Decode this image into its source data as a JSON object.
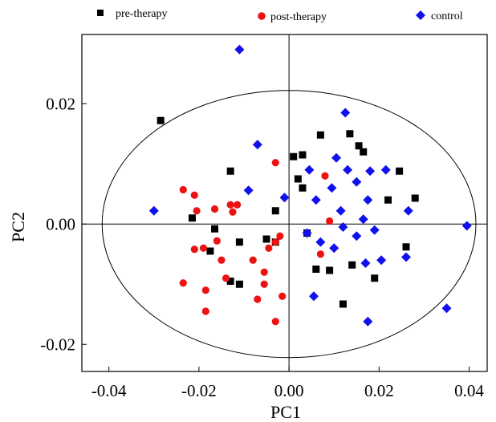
{
  "chart_data": {
    "type": "scatter",
    "title": "",
    "xlabel": "PC1",
    "ylabel": "PC2",
    "xlim": [
      -0.046,
      0.044
    ],
    "ylim": [
      -0.0245,
      0.0315
    ],
    "x_ticks": [
      -0.04,
      -0.02,
      0.0,
      0.02,
      0.04
    ],
    "x_tick_labels": [
      "-0.04",
      "-0.02",
      "0.00",
      "0.02",
      "0.04"
    ],
    "y_ticks": [
      -0.02,
      0.0,
      0.02
    ],
    "y_tick_labels": [
      "-0.02",
      "0.00",
      "0.02"
    ],
    "grid": false,
    "legend_position": "top",
    "confidence_ellipse": {
      "center": [
        0.0,
        0.0
      ],
      "radius_x": 0.0415,
      "radius_y": 0.0222
    },
    "series": [
      {
        "name": "pre-therapy",
        "marker": "square",
        "color": "#000000",
        "points": [
          [
            -0.0285,
            0.0172
          ],
          [
            -0.0215,
            0.001
          ],
          [
            -0.0175,
            -0.0045
          ],
          [
            -0.0165,
            -0.0008
          ],
          [
            -0.013,
            0.0088
          ],
          [
            -0.013,
            -0.0095
          ],
          [
            -0.011,
            -0.01
          ],
          [
            -0.011,
            -0.003
          ],
          [
            -0.005,
            -0.0025
          ],
          [
            -0.003,
            0.0022
          ],
          [
            -0.003,
            -0.003
          ],
          [
            0.001,
            0.0112
          ],
          [
            0.002,
            0.0075
          ],
          [
            0.003,
            0.006
          ],
          [
            0.003,
            0.0115
          ],
          [
            0.004,
            -0.0015
          ],
          [
            0.006,
            -0.0075
          ],
          [
            0.007,
            0.0148
          ],
          [
            0.009,
            -0.0077
          ],
          [
            0.012,
            -0.0133
          ],
          [
            0.0135,
            0.015
          ],
          [
            0.014,
            -0.0068
          ],
          [
            0.0155,
            0.013
          ],
          [
            0.0165,
            0.012
          ],
          [
            0.019,
            -0.009
          ],
          [
            0.022,
            0.004
          ],
          [
            0.0245,
            0.0088
          ],
          [
            0.026,
            -0.0038
          ],
          [
            0.028,
            0.0043
          ]
        ]
      },
      {
        "name": "post-therapy",
        "marker": "circle",
        "color": "#ee1111",
        "points": [
          [
            -0.0235,
            0.0057
          ],
          [
            -0.0235,
            -0.0098
          ],
          [
            -0.021,
            0.0048
          ],
          [
            -0.0205,
            0.0022
          ],
          [
            -0.021,
            -0.0042
          ],
          [
            -0.019,
            -0.004
          ],
          [
            -0.0185,
            -0.011
          ],
          [
            -0.0185,
            -0.0145
          ],
          [
            -0.0165,
            0.0025
          ],
          [
            -0.016,
            -0.0028
          ],
          [
            -0.015,
            -0.006
          ],
          [
            -0.014,
            -0.009
          ],
          [
            -0.013,
            0.0032
          ],
          [
            -0.0125,
            0.002
          ],
          [
            -0.0115,
            0.0032
          ],
          [
            -0.008,
            -0.006
          ],
          [
            -0.007,
            -0.0125
          ],
          [
            -0.0055,
            -0.008
          ],
          [
            -0.0055,
            -0.01
          ],
          [
            -0.0045,
            -0.004
          ],
          [
            -0.003,
            -0.003
          ],
          [
            -0.003,
            -0.0162
          ],
          [
            -0.002,
            -0.002
          ],
          [
            -0.0015,
            -0.012
          ],
          [
            -0.003,
            0.0102
          ],
          [
            0.007,
            -0.005
          ],
          [
            0.008,
            0.008
          ],
          [
            0.009,
            0.0005
          ]
        ]
      },
      {
        "name": "control",
        "marker": "diamond",
        "color": "#1111ee",
        "points": [
          [
            -0.011,
            0.029
          ],
          [
            -0.03,
            0.0022
          ],
          [
            -0.009,
            0.0056
          ],
          [
            -0.007,
            0.0132
          ],
          [
            -0.001,
            0.0044
          ],
          [
            0.004,
            -0.0015
          ],
          [
            0.0045,
            0.009
          ],
          [
            0.0055,
            -0.012
          ],
          [
            0.006,
            0.004
          ],
          [
            0.007,
            -0.003
          ],
          [
            0.0095,
            0.006
          ],
          [
            0.01,
            -0.004
          ],
          [
            0.0105,
            0.011
          ],
          [
            0.0115,
            0.0022
          ],
          [
            0.012,
            -0.0005
          ],
          [
            0.0125,
            0.0185
          ],
          [
            0.013,
            0.009
          ],
          [
            0.015,
            0.007
          ],
          [
            0.015,
            -0.002
          ],
          [
            0.0165,
            0.0008
          ],
          [
            0.017,
            -0.0065
          ],
          [
            0.0175,
            0.004
          ],
          [
            0.018,
            0.0088
          ],
          [
            0.0175,
            -0.0162
          ],
          [
            0.019,
            -0.001
          ],
          [
            0.0205,
            -0.006
          ],
          [
            0.0215,
            0.009
          ],
          [
            0.026,
            -0.0055
          ],
          [
            0.0265,
            0.0022
          ],
          [
            0.035,
            -0.014
          ],
          [
            0.0395,
            -0.0003
          ]
        ]
      }
    ]
  }
}
